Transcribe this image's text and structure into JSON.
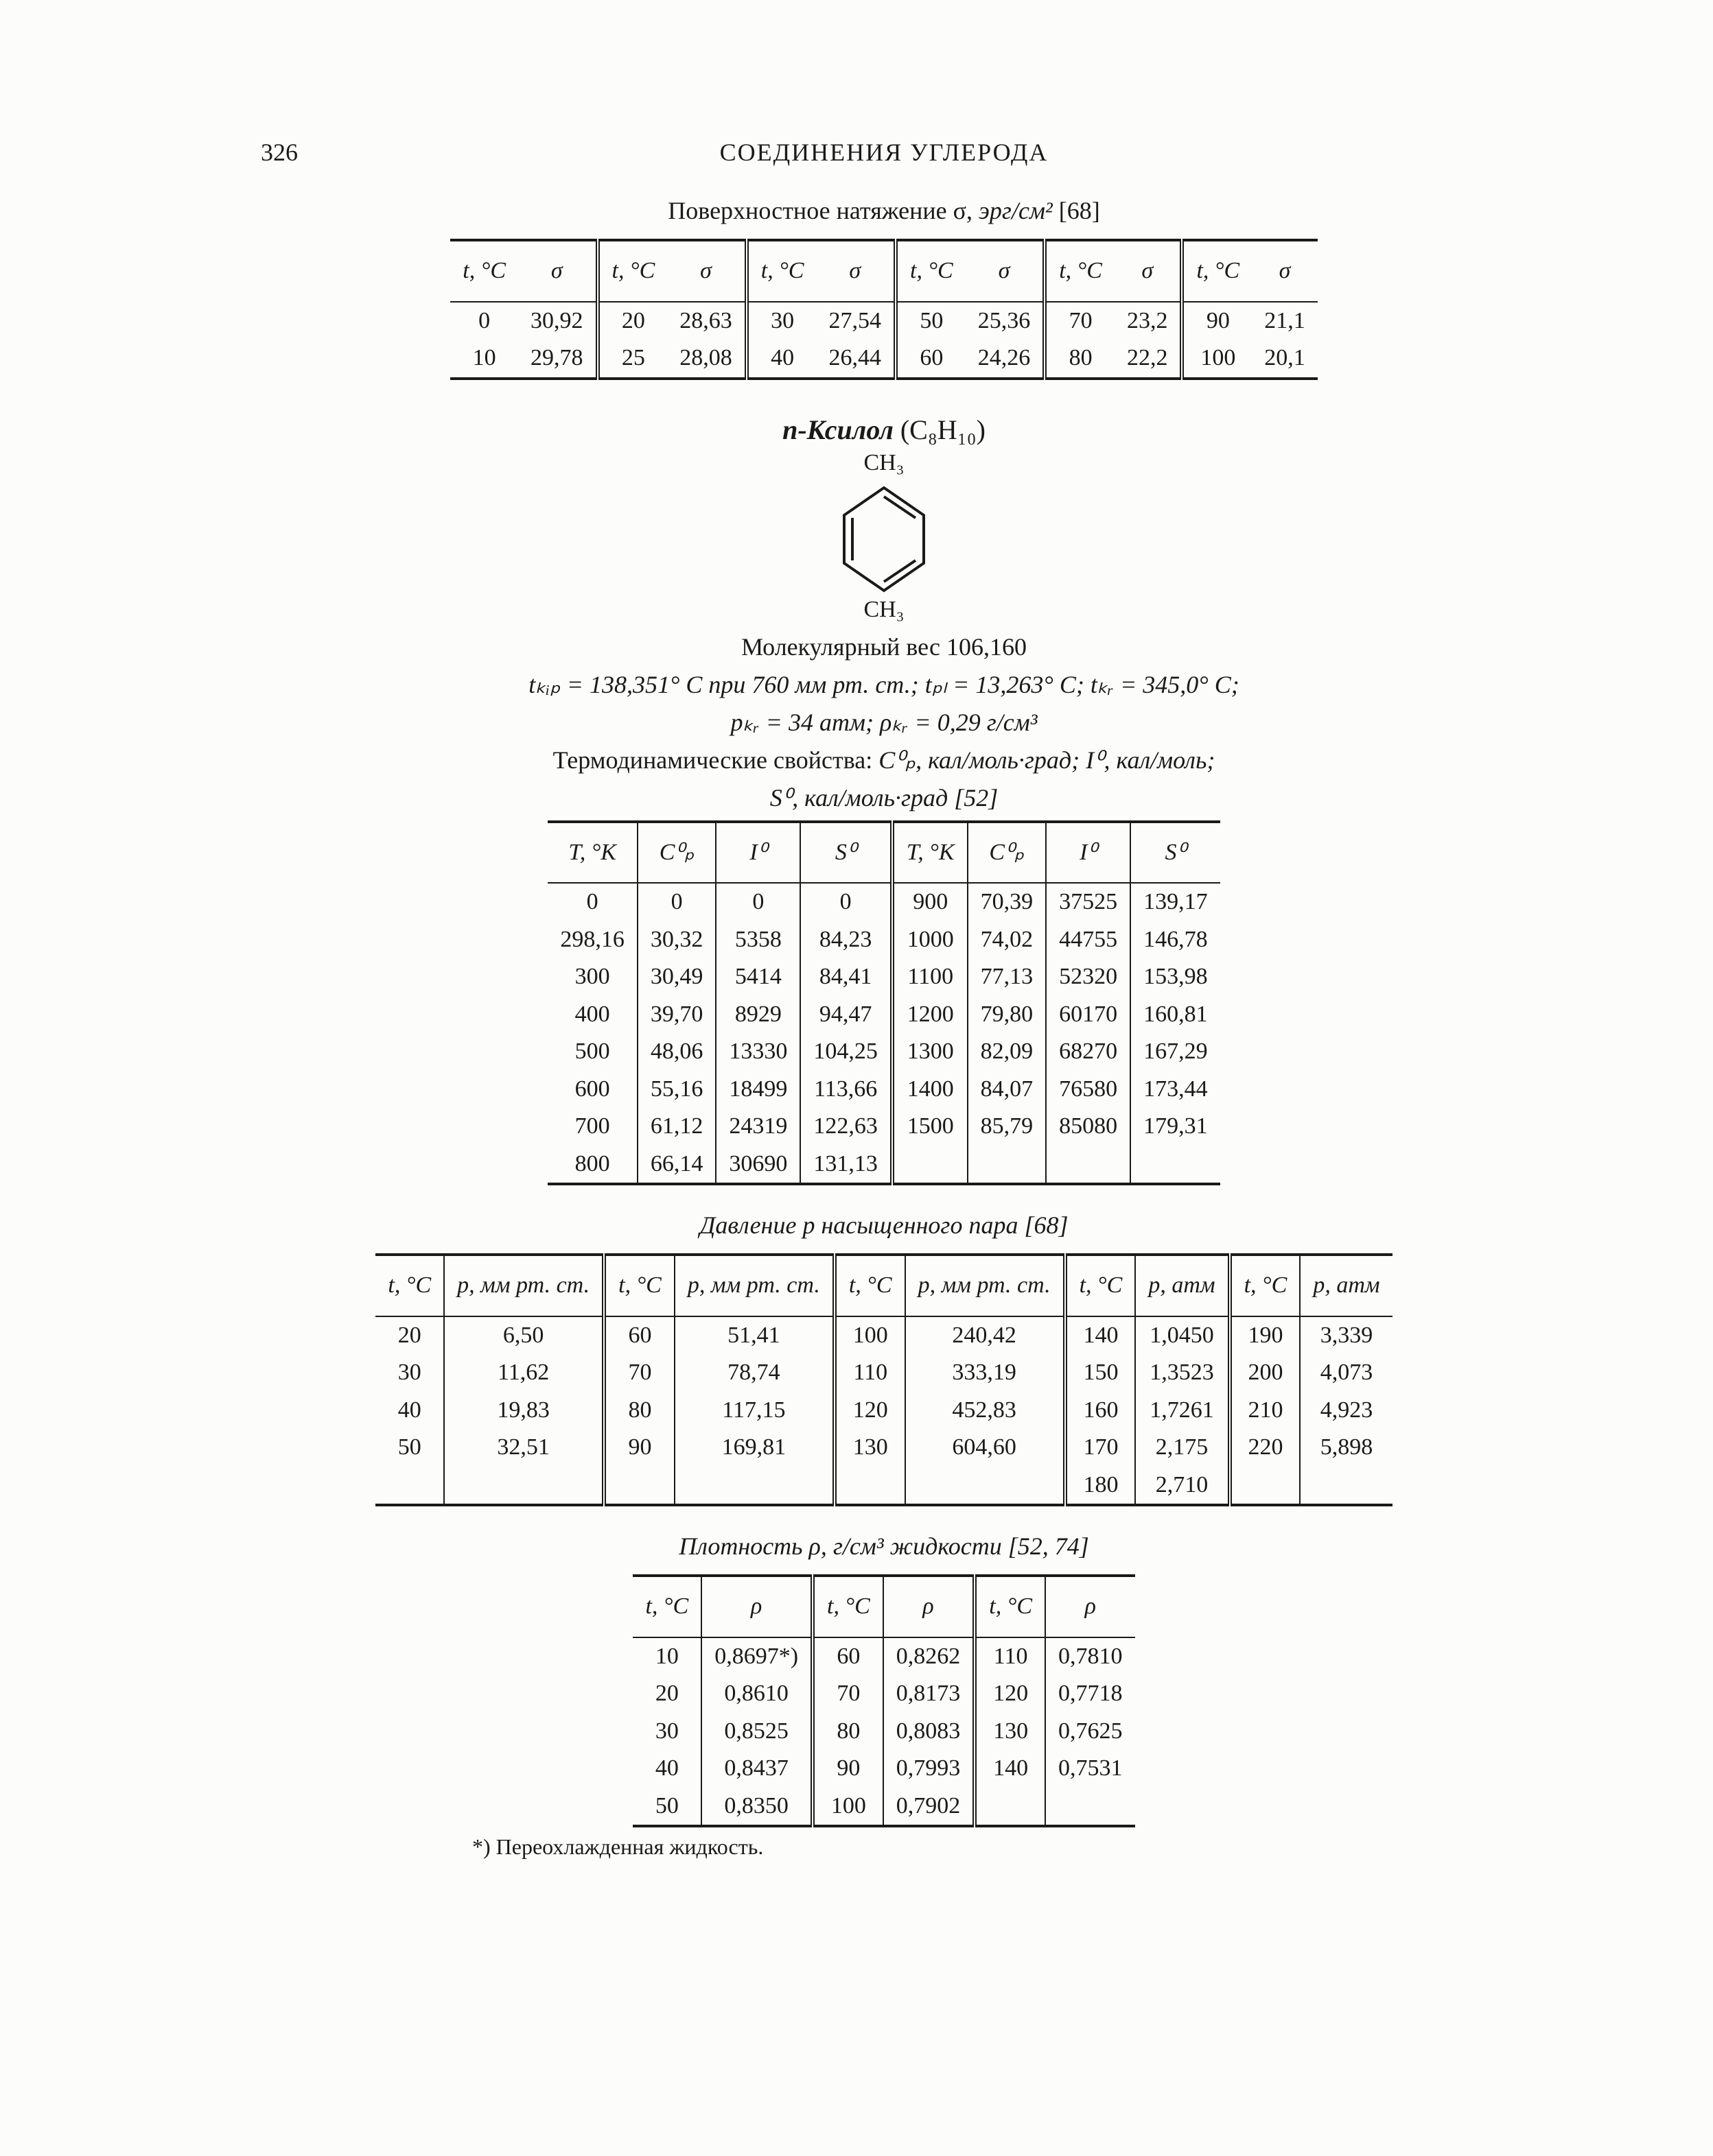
{
  "page": {
    "number": "326",
    "running_head": "СОЕДИНЕНИЯ УГЛЕРОДА"
  },
  "surface_tension": {
    "caption_prefix": "Поверхностное натяжение σ,",
    "caption_unit": "эрг/см²",
    "caption_ref": "[68]",
    "col_t": "t, °C",
    "col_sigma": "σ",
    "pairs": [
      {
        "t": [
          "0",
          "10"
        ],
        "s": [
          "30,92",
          "29,78"
        ]
      },
      {
        "t": [
          "20",
          "25"
        ],
        "s": [
          "28,63",
          "28,08"
        ]
      },
      {
        "t": [
          "30",
          "40"
        ],
        "s": [
          "27,54",
          "26,44"
        ]
      },
      {
        "t": [
          "50",
          "60"
        ],
        "s": [
          "25,36",
          "24,26"
        ]
      },
      {
        "t": [
          "70",
          "80"
        ],
        "s": [
          "23,2",
          "22,2"
        ]
      },
      {
        "t": [
          "90",
          "100"
        ],
        "s": [
          "21,1",
          "20,1"
        ]
      }
    ]
  },
  "compound": {
    "name": "п-Ксилол",
    "formula": "(C₈H₁₀)",
    "ch3_top": "CH₃",
    "ch3_bot": "CH₃",
    "mol_weight_label": "Молекулярный вес",
    "mol_weight_value": "106,160",
    "line1_a": "tₖᵢₚ = 138,351° С при 760 мм рт. ст.;",
    "line1_b": "tₚₗ = 13,263° С;",
    "line1_c": "tₖᵣ = 345,0° С;",
    "line2_a": "pₖᵣ = 34 атм;",
    "line2_b": "ρₖᵣ = 0,29 г/см³"
  },
  "thermo": {
    "caption_a": "Термодинамические свойства:",
    "caption_b": "C⁰ₚ, кал/моль·град;  I⁰, кал/моль;",
    "caption_c": "S⁰, кал/моль·град [52]",
    "col_T": "T, °K",
    "col_Cp": "C⁰ₚ",
    "col_I": "I⁰",
    "col_S": "S⁰",
    "left": {
      "T": [
        "0",
        "298,16",
        "300",
        "400",
        "500",
        "600",
        "700",
        "800"
      ],
      "Cp": [
        "0",
        "30,32",
        "30,49",
        "39,70",
        "48,06",
        "55,16",
        "61,12",
        "66,14"
      ],
      "I": [
        "0",
        "5358",
        "5414",
        "8929",
        "13330",
        "18499",
        "24319",
        "30690"
      ],
      "S": [
        "0",
        "84,23",
        "84,41",
        "94,47",
        "104,25",
        "113,66",
        "122,63",
        "131,13"
      ]
    },
    "right": {
      "T": [
        "900",
        "1000",
        "1100",
        "1200",
        "1300",
        "1400",
        "1500"
      ],
      "Cp": [
        "70,39",
        "74,02",
        "77,13",
        "79,80",
        "82,09",
        "84,07",
        "85,79"
      ],
      "I": [
        "37525",
        "44755",
        "52320",
        "60170",
        "68270",
        "76580",
        "85080"
      ],
      "S": [
        "139,17",
        "146,78",
        "153,98",
        "160,81",
        "167,29",
        "173,44",
        "179,31"
      ]
    }
  },
  "vapor": {
    "caption": "Давление p насыщенного пара [68]",
    "col_t": "t, °C",
    "col_p_mm": "p, мм рт. ст.",
    "col_p_atm": "p, атм",
    "block1": {
      "t": [
        "20",
        "30",
        "40",
        "50"
      ],
      "p": [
        "6,50",
        "11,62",
        "19,83",
        "32,51"
      ]
    },
    "block2": {
      "t": [
        "60",
        "70",
        "80",
        "90"
      ],
      "p": [
        "51,41",
        "78,74",
        "117,15",
        "169,81"
      ]
    },
    "block3": {
      "t": [
        "100",
        "110",
        "120",
        "130"
      ],
      "p": [
        "240,42",
        "333,19",
        "452,83",
        "604,60"
      ]
    },
    "block4": {
      "t": [
        "140",
        "150",
        "160",
        "170",
        "180"
      ],
      "p": [
        "1,0450",
        "1,3523",
        "1,7261",
        "2,175",
        "2,710"
      ]
    },
    "block5": {
      "t": [
        "190",
        "200",
        "210",
        "220"
      ],
      "p": [
        "3,339",
        "4,073",
        "4,923",
        "5,898"
      ]
    }
  },
  "density": {
    "caption": "Плотность ρ, г/см³ жидкости [52, 74]",
    "col_t": "t, °C",
    "col_rho": "ρ",
    "block1": {
      "t": [
        "10",
        "20",
        "30",
        "40",
        "50"
      ],
      "r": [
        "0,8697*)",
        "0,8610",
        "0,8525",
        "0,8437",
        "0,8350"
      ]
    },
    "block2": {
      "t": [
        "60",
        "70",
        "80",
        "90",
        "100"
      ],
      "r": [
        "0,8262",
        "0,8173",
        "0,8083",
        "0,7993",
        "0,7902"
      ]
    },
    "block3": {
      "t": [
        "110",
        "120",
        "130",
        "140"
      ],
      "r": [
        "0,7810",
        "0,7718",
        "0,7625",
        "0,7531"
      ]
    },
    "footnote": "*) Переохлажденная жидкость."
  },
  "style": {
    "border_color": "#1a1a1a",
    "font_family": "Times New Roman",
    "header_fontsize_pt": 18
  }
}
